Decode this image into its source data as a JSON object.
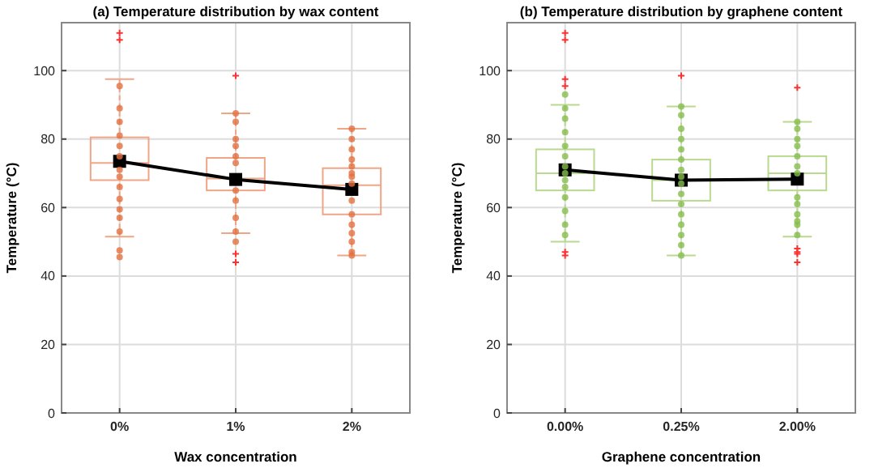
{
  "chart_data": [
    {
      "type": "box",
      "title": "(a) Temperature distribution by wax content",
      "xlabel": "Wax concentration",
      "ylabel": "Temperature (°C)",
      "categories": [
        "0%",
        "1%",
        "2%"
      ],
      "ylim": [
        0,
        114
      ],
      "yticks": [
        0,
        20,
        40,
        60,
        80,
        100
      ],
      "grid": true,
      "series": [
        {
          "type": "scatter",
          "color": "#e2703f",
          "x": [
            "0%",
            "0%",
            "0%",
            "0%",
            "0%",
            "0%",
            "0%",
            "0%",
            "0%",
            "0%",
            "0%",
            "0%",
            "0%",
            "0%",
            "0%",
            "1%",
            "1%",
            "1%",
            "1%",
            "1%",
            "1%",
            "1%",
            "1%",
            "1%",
            "1%",
            "1%",
            "2%",
            "2%",
            "2%",
            "2%",
            "2%",
            "2%",
            "2%",
            "2%",
            "2%",
            "2%",
            "2%",
            "2%",
            "2%",
            "2%",
            "2%"
          ],
          "values": [
            45.5,
            47.5,
            53,
            57,
            59.5,
            62.5,
            66,
            69,
            71,
            75,
            78,
            81,
            85,
            89,
            95.5,
            50,
            53,
            57,
            62,
            65,
            73,
            75,
            78,
            80,
            85,
            87.5,
            47,
            46,
            50,
            52.5,
            55,
            58,
            62,
            67,
            69,
            70,
            72,
            74,
            77,
            80,
            83
          ]
        },
        {
          "color": "#f0a587",
          "boxes": [
            {
              "low": 51.5,
              "q1": 68,
              "median": 73,
              "q3": 80.5,
              "high": 97.5,
              "outliers": [
                109,
                111
              ]
            },
            {
              "low": 52.5,
              "q1": 65,
              "median": 68.5,
              "q3": 74.5,
              "high": 87.5,
              "outliers": [
                98.5,
                46.5,
                44
              ]
            },
            {
              "low": 46,
              "q1": 58,
              "median": 66.5,
              "q3": 71.5,
              "high": 83
            }
          ]
        },
        {
          "type": "line",
          "color": "#000000",
          "marker": "square",
          "values": [
            73.5,
            68.2,
            65.3
          ]
        }
      ]
    },
    {
      "type": "box",
      "title": "(b) Temperature distribution by graphene content",
      "xlabel": "Graphene concentration",
      "ylabel": "Temperature (°C)",
      "categories": [
        "0.00%",
        "0.25%",
        "2.00%"
      ],
      "ylim": [
        0,
        114
      ],
      "yticks": [
        0,
        20,
        40,
        60,
        80,
        100
      ],
      "grid": true,
      "series": [
        {
          "type": "scatter",
          "color": "#86bd4c",
          "x": [
            "0.00%",
            "0.00%",
            "0.00%",
            "0.00%",
            "0.00%",
            "0.00%",
            "0.00%",
            "0.00%",
            "0.00%",
            "0.00%",
            "0.00%",
            "0.00%",
            "0.00%",
            "0.00%",
            "0.25%",
            "0.25%",
            "0.25%",
            "0.25%",
            "0.25%",
            "0.25%",
            "0.25%",
            "0.25%",
            "0.25%",
            "0.25%",
            "0.25%",
            "0.25%",
            "0.25%",
            "0.25%",
            "0.25%",
            "0.25%",
            "2.00%",
            "2.00%",
            "2.00%",
            "2.00%",
            "2.00%",
            "2.00%",
            "2.00%",
            "2.00%",
            "2.00%",
            "2.00%",
            "2.00%",
            "2.00%",
            "2.00%"
          ],
          "values": [
            52,
            55,
            59,
            63,
            66,
            68,
            70,
            72,
            75,
            78,
            82,
            86,
            89,
            93,
            46,
            49,
            52,
            55,
            58,
            61,
            64,
            67,
            69,
            71,
            74,
            77,
            80,
            83,
            87,
            89.5,
            52,
            55,
            58,
            63,
            70,
            72,
            75,
            78,
            80,
            83,
            85,
            61,
            56
          ]
        },
        {
          "color": "#b9d98f",
          "boxes": [
            {
              "low": 50,
              "q1": 65,
              "median": 70,
              "q3": 77,
              "high": 90,
              "outliers": [
                111,
                109,
                97.5,
                95.5,
                47,
                46
              ]
            },
            {
              "low": 46,
              "q1": 62,
              "median": 68,
              "q3": 74,
              "high": 89.5,
              "outliers": [
                98.5
              ]
            },
            {
              "low": 51.5,
              "q1": 65,
              "median": 70,
              "q3": 75,
              "high": 85,
              "outliers": [
                95,
                48,
                47,
                46.5,
                44
              ]
            }
          ]
        },
        {
          "type": "line",
          "color": "#000000",
          "marker": "square",
          "values": [
            71,
            68,
            68.3
          ]
        }
      ]
    }
  ]
}
